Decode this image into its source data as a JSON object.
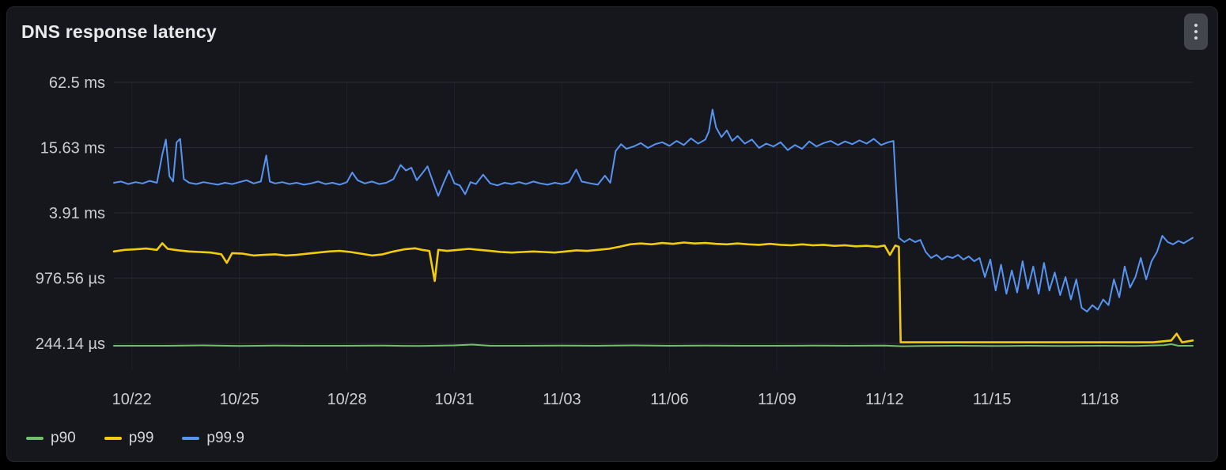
{
  "panel": {
    "title": "DNS response latency",
    "menu_icon": "kebab-vertical-icon",
    "background_color": "#16171d",
    "grid_color": "rgba(204,204,220,0.11)",
    "vgrid_color": "rgba(204,204,220,0.06)"
  },
  "chart_data": {
    "type": "line",
    "title": "DNS response latency",
    "xlabel": "",
    "ylabel": "",
    "x_unit": "days since 10/22",
    "y_unit": "ms",
    "y_scale": "log-base-4",
    "grid": true,
    "legend_position": "bottom-left",
    "xlim": [
      -0.5,
      29.6
    ],
    "x_ticks": {
      "values": [
        0,
        3,
        6,
        9,
        12,
        15,
        18,
        21,
        24,
        27
      ],
      "labels": [
        "10/22",
        "10/25",
        "10/28",
        "10/31",
        "11/03",
        "11/06",
        "11/09",
        "11/12",
        "11/15",
        "11/18"
      ]
    },
    "y_ticks": {
      "values": [
        62.5,
        15.625,
        3.90625,
        0.97656,
        0.24414
      ],
      "labels": [
        "62.5 ms",
        "15.63 ms",
        "3.91 ms",
        "976.56 µs",
        "244.14 µs"
      ]
    },
    "series": [
      {
        "name": "p90",
        "color": "#73bf69",
        "width": 2,
        "points": [
          [
            -0.5,
            0.232
          ],
          [
            1,
            0.232
          ],
          [
            2,
            0.234
          ],
          [
            3,
            0.231
          ],
          [
            4,
            0.233
          ],
          [
            5,
            0.232
          ],
          [
            6,
            0.232
          ],
          [
            7,
            0.233
          ],
          [
            8,
            0.231
          ],
          [
            9,
            0.234
          ],
          [
            9.5,
            0.238
          ],
          [
            10,
            0.232
          ],
          [
            11,
            0.232
          ],
          [
            12,
            0.233
          ],
          [
            13,
            0.232
          ],
          [
            14,
            0.234
          ],
          [
            15,
            0.232
          ],
          [
            16,
            0.233
          ],
          [
            17,
            0.232
          ],
          [
            18,
            0.232
          ],
          [
            19,
            0.233
          ],
          [
            20,
            0.232
          ],
          [
            21,
            0.233
          ],
          [
            21.5,
            0.23
          ],
          [
            22,
            0.231
          ],
          [
            23,
            0.232
          ],
          [
            24,
            0.231
          ],
          [
            25,
            0.232
          ],
          [
            26,
            0.231
          ],
          [
            27,
            0.232
          ],
          [
            28,
            0.231
          ],
          [
            28.8,
            0.235
          ],
          [
            29,
            0.24
          ],
          [
            29.2,
            0.232
          ],
          [
            29.6,
            0.232
          ]
        ]
      },
      {
        "name": "p99",
        "color": "#f2cc0c",
        "width": 2.6,
        "points": [
          [
            -0.5,
            1.72
          ],
          [
            -0.2,
            1.78
          ],
          [
            0.1,
            1.8
          ],
          [
            0.4,
            1.83
          ],
          [
            0.7,
            1.78
          ],
          [
            0.85,
            2.05
          ],
          [
            1,
            1.82
          ],
          [
            1.3,
            1.76
          ],
          [
            1.6,
            1.72
          ],
          [
            1.9,
            1.7
          ],
          [
            2.2,
            1.68
          ],
          [
            2.5,
            1.62
          ],
          [
            2.65,
            1.35
          ],
          [
            2.8,
            1.66
          ],
          [
            3.1,
            1.64
          ],
          [
            3.4,
            1.58
          ],
          [
            3.7,
            1.6
          ],
          [
            4,
            1.62
          ],
          [
            4.3,
            1.58
          ],
          [
            4.6,
            1.6
          ],
          [
            4.9,
            1.64
          ],
          [
            5.2,
            1.68
          ],
          [
            5.5,
            1.72
          ],
          [
            5.8,
            1.74
          ],
          [
            6.1,
            1.7
          ],
          [
            6.4,
            1.64
          ],
          [
            6.7,
            1.58
          ],
          [
            7,
            1.62
          ],
          [
            7.3,
            1.72
          ],
          [
            7.6,
            1.8
          ],
          [
            7.9,
            1.84
          ],
          [
            8.1,
            1.78
          ],
          [
            8.3,
            1.74
          ],
          [
            8.45,
            0.92
          ],
          [
            8.55,
            1.78
          ],
          [
            8.8,
            1.74
          ],
          [
            9.1,
            1.78
          ],
          [
            9.4,
            1.82
          ],
          [
            9.7,
            1.78
          ],
          [
            10,
            1.74
          ],
          [
            10.3,
            1.7
          ],
          [
            10.6,
            1.68
          ],
          [
            10.9,
            1.7
          ],
          [
            11.2,
            1.72
          ],
          [
            11.5,
            1.7
          ],
          [
            11.8,
            1.68
          ],
          [
            12.1,
            1.72
          ],
          [
            12.4,
            1.76
          ],
          [
            12.7,
            1.74
          ],
          [
            13,
            1.78
          ],
          [
            13.3,
            1.82
          ],
          [
            13.6,
            1.9
          ],
          [
            13.9,
            2
          ],
          [
            14.2,
            2.04
          ],
          [
            14.5,
            2
          ],
          [
            14.8,
            2.06
          ],
          [
            15.1,
            2.02
          ],
          [
            15.4,
            2.08
          ],
          [
            15.7,
            2.04
          ],
          [
            16,
            2.06
          ],
          [
            16.3,
            2.02
          ],
          [
            16.6,
            2
          ],
          [
            16.9,
            2.04
          ],
          [
            17.2,
            2
          ],
          [
            17.5,
            1.98
          ],
          [
            17.8,
            2.02
          ],
          [
            18.1,
            1.98
          ],
          [
            18.4,
            1.96
          ],
          [
            18.7,
            2
          ],
          [
            19,
            1.96
          ],
          [
            19.3,
            1.98
          ],
          [
            19.6,
            1.94
          ],
          [
            19.9,
            1.96
          ],
          [
            20.2,
            1.92
          ],
          [
            20.5,
            1.94
          ],
          [
            20.8,
            1.9
          ],
          [
            21,
            1.95
          ],
          [
            21.15,
            1.6
          ],
          [
            21.3,
            1.95
          ],
          [
            21.4,
            1.9
          ],
          [
            21.45,
            0.25
          ],
          [
            22,
            0.25
          ],
          [
            22.5,
            0.25
          ],
          [
            23,
            0.25
          ],
          [
            23.5,
            0.25
          ],
          [
            24,
            0.25
          ],
          [
            24.5,
            0.25
          ],
          [
            25,
            0.25
          ],
          [
            25.5,
            0.25
          ],
          [
            26,
            0.25
          ],
          [
            26.5,
            0.25
          ],
          [
            27,
            0.25
          ],
          [
            27.5,
            0.25
          ],
          [
            28,
            0.25
          ],
          [
            28.5,
            0.25
          ],
          [
            29,
            0.26
          ],
          [
            29.15,
            0.3
          ],
          [
            29.3,
            0.25
          ],
          [
            29.6,
            0.26
          ]
        ]
      },
      {
        "name": "p99.9",
        "color": "#5794f2",
        "width": 2,
        "points": [
          [
            -0.5,
            7.4
          ],
          [
            -0.3,
            7.6
          ],
          [
            -0.1,
            7.2
          ],
          [
            0.1,
            7.5
          ],
          [
            0.3,
            7.3
          ],
          [
            0.5,
            7.7
          ],
          [
            0.7,
            7.4
          ],
          [
            0.85,
            13.5
          ],
          [
            0.95,
            18.5
          ],
          [
            1.05,
            8.5
          ],
          [
            1.15,
            7.6
          ],
          [
            1.25,
            17.5
          ],
          [
            1.35,
            18.8
          ],
          [
            1.45,
            8
          ],
          [
            1.6,
            7.4
          ],
          [
            1.8,
            7.2
          ],
          [
            2,
            7.5
          ],
          [
            2.2,
            7.3
          ],
          [
            2.4,
            7.1
          ],
          [
            2.6,
            7.4
          ],
          [
            2.8,
            7.2
          ],
          [
            3,
            7.5
          ],
          [
            3.2,
            7.8
          ],
          [
            3.4,
            7.3
          ],
          [
            3.6,
            7.6
          ],
          [
            3.75,
            13.2
          ],
          [
            3.85,
            7.6
          ],
          [
            4,
            7.3
          ],
          [
            4.2,
            7.5
          ],
          [
            4.4,
            7.2
          ],
          [
            4.6,
            7.4
          ],
          [
            4.8,
            7.1
          ],
          [
            5,
            7.3
          ],
          [
            5.2,
            7.6
          ],
          [
            5.4,
            7.2
          ],
          [
            5.6,
            7.4
          ],
          [
            5.8,
            7.1
          ],
          [
            6,
            7.5
          ],
          [
            6.15,
            9.2
          ],
          [
            6.3,
            7.8
          ],
          [
            6.5,
            7.3
          ],
          [
            6.7,
            7.6
          ],
          [
            6.9,
            7.2
          ],
          [
            7.1,
            7.4
          ],
          [
            7.3,
            8
          ],
          [
            7.5,
            10.8
          ],
          [
            7.65,
            9.6
          ],
          [
            7.8,
            10.2
          ],
          [
            7.95,
            7.8
          ],
          [
            8.1,
            9
          ],
          [
            8.25,
            10.5
          ],
          [
            8.4,
            7.6
          ],
          [
            8.55,
            5.6
          ],
          [
            8.7,
            7.4
          ],
          [
            8.85,
            9.6
          ],
          [
            9,
            7.3
          ],
          [
            9.15,
            7
          ],
          [
            9.3,
            5.8
          ],
          [
            9.45,
            7.5
          ],
          [
            9.6,
            7.2
          ],
          [
            9.8,
            8.8
          ],
          [
            10,
            7.3
          ],
          [
            10.2,
            7
          ],
          [
            10.4,
            7.4
          ],
          [
            10.6,
            7.2
          ],
          [
            10.8,
            7.5
          ],
          [
            11,
            7.2
          ],
          [
            11.2,
            7.6
          ],
          [
            11.4,
            7.3
          ],
          [
            11.6,
            7.1
          ],
          [
            11.8,
            7.4
          ],
          [
            12,
            7.2
          ],
          [
            12.2,
            7.5
          ],
          [
            12.4,
            9.8
          ],
          [
            12.55,
            7.6
          ],
          [
            12.8,
            7.3
          ],
          [
            13,
            7.1
          ],
          [
            13.2,
            8.6
          ],
          [
            13.35,
            7.4
          ],
          [
            13.5,
            14.5
          ],
          [
            13.65,
            16.8
          ],
          [
            13.8,
            15.2
          ],
          [
            14,
            16
          ],
          [
            14.2,
            17.2
          ],
          [
            14.4,
            15.5
          ],
          [
            14.6,
            16.8
          ],
          [
            14.8,
            17.5
          ],
          [
            15,
            16.2
          ],
          [
            15.2,
            18
          ],
          [
            15.4,
            16.5
          ],
          [
            15.6,
            19
          ],
          [
            15.8,
            17
          ],
          [
            16,
            18.5
          ],
          [
            16.1,
            22
          ],
          [
            16.2,
            35
          ],
          [
            16.3,
            24
          ],
          [
            16.45,
            19.5
          ],
          [
            16.6,
            22.5
          ],
          [
            16.75,
            18
          ],
          [
            16.9,
            20
          ],
          [
            17.1,
            17
          ],
          [
            17.3,
            18.5
          ],
          [
            17.5,
            15.5
          ],
          [
            17.7,
            17
          ],
          [
            17.9,
            16
          ],
          [
            18.1,
            17.5
          ],
          [
            18.3,
            14.8
          ],
          [
            18.5,
            16.5
          ],
          [
            18.7,
            15.2
          ],
          [
            18.9,
            17.8
          ],
          [
            19.1,
            16
          ],
          [
            19.3,
            17.2
          ],
          [
            19.5,
            18
          ],
          [
            19.7,
            16.5
          ],
          [
            19.9,
            17.8
          ],
          [
            20.1,
            16.8
          ],
          [
            20.3,
            18.2
          ],
          [
            20.5,
            17
          ],
          [
            20.7,
            18.8
          ],
          [
            20.9,
            16.5
          ],
          [
            21.1,
            17.5
          ],
          [
            21.25,
            18
          ],
          [
            21.4,
            2.3
          ],
          [
            21.55,
            2.1
          ],
          [
            21.7,
            2.25
          ],
          [
            21.85,
            2.1
          ],
          [
            22,
            2.2
          ],
          [
            22.15,
            1.7
          ],
          [
            22.3,
            1.5
          ],
          [
            22.45,
            1.6
          ],
          [
            22.6,
            1.45
          ],
          [
            22.75,
            1.55
          ],
          [
            22.9,
            1.5
          ],
          [
            23.05,
            1.6
          ],
          [
            23.2,
            1.45
          ],
          [
            23.35,
            1.55
          ],
          [
            23.5,
            1.4
          ],
          [
            23.65,
            1.5
          ],
          [
            23.8,
            1
          ],
          [
            23.95,
            1.45
          ],
          [
            24.1,
            0.75
          ],
          [
            24.25,
            1.3
          ],
          [
            24.4,
            0.7
          ],
          [
            24.55,
            1.15
          ],
          [
            24.7,
            0.72
          ],
          [
            24.85,
            1.4
          ],
          [
            25,
            0.78
          ],
          [
            25.15,
            1.25
          ],
          [
            25.3,
            0.7
          ],
          [
            25.45,
            1.35
          ],
          [
            25.6,
            0.75
          ],
          [
            25.75,
            1.1
          ],
          [
            25.9,
            0.68
          ],
          [
            26.05,
            1
          ],
          [
            26.2,
            0.62
          ],
          [
            26.35,
            0.95
          ],
          [
            26.5,
            0.52
          ],
          [
            26.65,
            0.48
          ],
          [
            26.8,
            0.55
          ],
          [
            26.95,
            0.5
          ],
          [
            27.1,
            0.62
          ],
          [
            27.25,
            0.55
          ],
          [
            27.4,
            0.95
          ],
          [
            27.55,
            0.65
          ],
          [
            27.7,
            1.25
          ],
          [
            27.85,
            0.8
          ],
          [
            28,
            1
          ],
          [
            28.15,
            1.5
          ],
          [
            28.3,
            0.95
          ],
          [
            28.45,
            1.4
          ],
          [
            28.6,
            1.7
          ],
          [
            28.75,
            2.4
          ],
          [
            28.9,
            2.1
          ],
          [
            29.05,
            2
          ],
          [
            29.2,
            2.15
          ],
          [
            29.35,
            2.05
          ],
          [
            29.5,
            2.2
          ],
          [
            29.6,
            2.3
          ]
        ]
      }
    ]
  }
}
